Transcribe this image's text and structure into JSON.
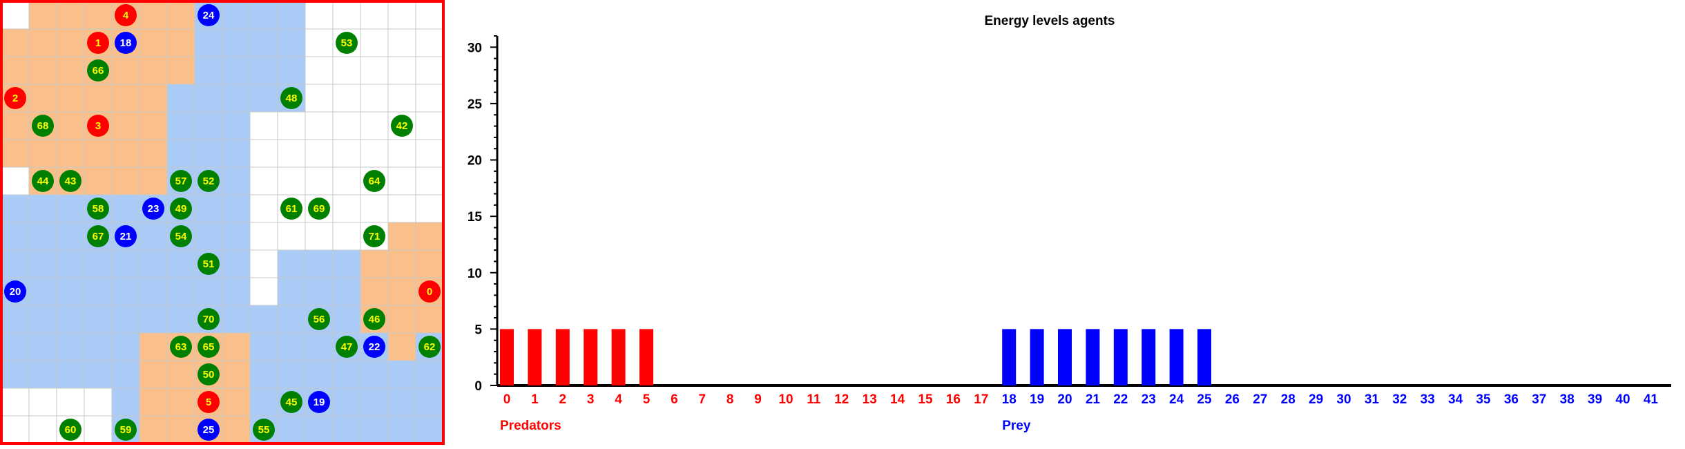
{
  "grid": {
    "cols": 16,
    "rows": 16,
    "border_color": "#ff0000",
    "fills": [
      "W O O O O O O B B B B W W W W W",
      "O O O O O O O B B B B W W W W W",
      "O O O O O O O B B B B W W W W W",
      "O O O O O O B B B B B W W W W W",
      "O O O O O O B B B W W W W W W W",
      "O O O O O O B B B W W W W W W W",
      "W O O O O O B B B W W W W W W W",
      "B B B B B B B B B W W W W W W W",
      "B B B B B B B B B W W W W W O O",
      "B B B B B B B B B W B B B O O O",
      "B B B B B B B B B W B B B O O O",
      "B B B B B B B B B B B B B O O O",
      "B B B B B O O O O B B B B B O B",
      "B B B B B O O O O B B B B B B B",
      "W W W W B O O O O B B B B B B B",
      "W W W W B O O O O B B B B B B B"
    ],
    "agents": [
      {
        "id": "0",
        "kind": "predator",
        "col": 15,
        "row": 10
      },
      {
        "id": "1",
        "kind": "predator",
        "col": 3,
        "row": 1
      },
      {
        "id": "2",
        "kind": "predator",
        "col": 0,
        "row": 3
      },
      {
        "id": "3",
        "kind": "predator",
        "col": 3,
        "row": 4
      },
      {
        "id": "4",
        "kind": "predator",
        "col": 4,
        "row": 0
      },
      {
        "id": "5",
        "kind": "predator",
        "col": 7,
        "row": 14
      },
      {
        "id": "18",
        "kind": "prey",
        "col": 4,
        "row": 1
      },
      {
        "id": "19",
        "kind": "prey",
        "col": 11,
        "row": 14
      },
      {
        "id": "20",
        "kind": "prey",
        "col": 0,
        "row": 10
      },
      {
        "id": "21",
        "kind": "prey",
        "col": 4,
        "row": 8
      },
      {
        "id": "22",
        "kind": "prey",
        "col": 13,
        "row": 12
      },
      {
        "id": "23",
        "kind": "prey",
        "col": 5,
        "row": 7
      },
      {
        "id": "24",
        "kind": "prey",
        "col": 7,
        "row": 0
      },
      {
        "id": "25",
        "kind": "prey",
        "col": 7,
        "row": 15
      },
      {
        "id": "42",
        "kind": "plant",
        "col": 14,
        "row": 4
      },
      {
        "id": "43",
        "kind": "plant",
        "col": 2,
        "row": 6
      },
      {
        "id": "44",
        "kind": "plant",
        "col": 1,
        "row": 6
      },
      {
        "id": "45",
        "kind": "plant",
        "col": 10,
        "row": 14
      },
      {
        "id": "46",
        "kind": "plant",
        "col": 13,
        "row": 11
      },
      {
        "id": "47",
        "kind": "plant",
        "col": 12,
        "row": 12
      },
      {
        "id": "48",
        "kind": "plant",
        "col": 10,
        "row": 3
      },
      {
        "id": "49",
        "kind": "plant",
        "col": 6,
        "row": 7
      },
      {
        "id": "50",
        "kind": "plant",
        "col": 7,
        "row": 13
      },
      {
        "id": "51",
        "kind": "plant",
        "col": 7,
        "row": 9
      },
      {
        "id": "52",
        "kind": "plant",
        "col": 7,
        "row": 6
      },
      {
        "id": "53",
        "kind": "plant",
        "col": 12,
        "row": 1
      },
      {
        "id": "54",
        "kind": "plant",
        "col": 6,
        "row": 8
      },
      {
        "id": "55",
        "kind": "plant",
        "col": 9,
        "row": 15
      },
      {
        "id": "56",
        "kind": "plant",
        "col": 11,
        "row": 11
      },
      {
        "id": "57",
        "kind": "plant",
        "col": 6,
        "row": 6
      },
      {
        "id": "58",
        "kind": "plant",
        "col": 3,
        "row": 7
      },
      {
        "id": "59",
        "kind": "plant",
        "col": 4,
        "row": 15
      },
      {
        "id": "60",
        "kind": "plant",
        "col": 2,
        "row": 15
      },
      {
        "id": "61",
        "kind": "plant",
        "col": 10,
        "row": 7
      },
      {
        "id": "62",
        "kind": "plant",
        "col": 15,
        "row": 12
      },
      {
        "id": "63",
        "kind": "plant",
        "col": 6,
        "row": 12
      },
      {
        "id": "64",
        "kind": "plant",
        "col": 13,
        "row": 6
      },
      {
        "id": "65",
        "kind": "plant",
        "col": 7,
        "row": 12
      },
      {
        "id": "66",
        "kind": "plant",
        "col": 3,
        "row": 2
      },
      {
        "id": "67",
        "kind": "plant",
        "col": 3,
        "row": 8
      },
      {
        "id": "68",
        "kind": "plant",
        "col": 1,
        "row": 4
      },
      {
        "id": "69",
        "kind": "plant",
        "col": 11,
        "row": 7
      },
      {
        "id": "70",
        "kind": "plant",
        "col": 7,
        "row": 11
      },
      {
        "id": "71",
        "kind": "plant",
        "col": 13,
        "row": 8
      }
    ]
  },
  "colors": {
    "predator": "#ff0000",
    "prey": "#0000ff",
    "plant": "#008000",
    "predator_label": "#ffff00",
    "plant_label": "#ffff00",
    "prey_label": "#ffffff",
    "territory_predator": "#f7a55a",
    "territory_prey": "#6fa8f0"
  },
  "chart_data": {
    "type": "bar",
    "title": "Energy levels agents",
    "categories": [
      "0",
      "1",
      "2",
      "3",
      "4",
      "5",
      "6",
      "7",
      "8",
      "9",
      "10",
      "11",
      "12",
      "13",
      "14",
      "15",
      "16",
      "17",
      "18",
      "19",
      "20",
      "21",
      "22",
      "23",
      "24",
      "25",
      "26",
      "27",
      "28",
      "29",
      "30",
      "31",
      "32",
      "33",
      "34",
      "35",
      "36",
      "37",
      "38",
      "39",
      "40",
      "41"
    ],
    "values": [
      5,
      5,
      5,
      5,
      5,
      5,
      0,
      0,
      0,
      0,
      0,
      0,
      0,
      0,
      0,
      0,
      0,
      0,
      5,
      5,
      5,
      5,
      5,
      5,
      5,
      5,
      0,
      0,
      0,
      0,
      0,
      0,
      0,
      0,
      0,
      0,
      0,
      0,
      0,
      0,
      0,
      0
    ],
    "group_split": 18,
    "groups": [
      {
        "label": "Predators",
        "color": "#ff0000"
      },
      {
        "label": "Prey",
        "color": "#0000ff"
      }
    ],
    "ylim": [
      0,
      31
    ],
    "yticks": [
      0,
      5,
      10,
      15,
      20,
      25,
      30
    ],
    "grid": false
  }
}
